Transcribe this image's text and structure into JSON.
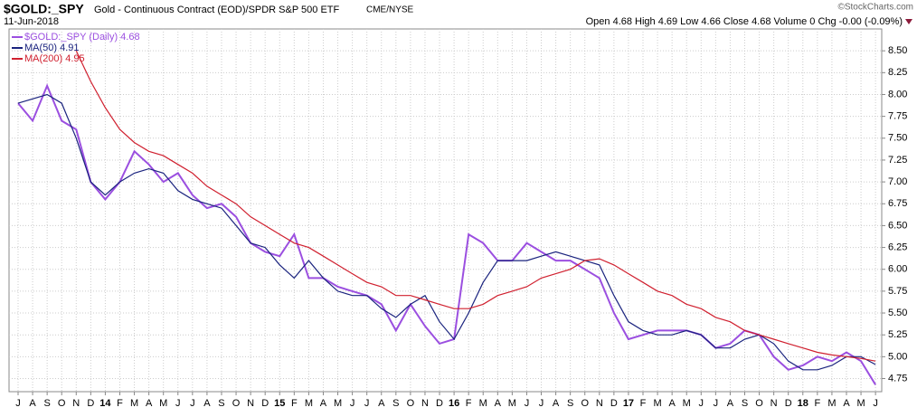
{
  "chart_data": {
    "type": "line",
    "symbol": "$GOLD:_SPY",
    "title": "Gold - Continuous Contract (EOD)/SPDR S&P 500 ETF",
    "exchange": "CME/NYSE",
    "date": "11-Jun-2018",
    "source": "©StockCharts.com",
    "quote": "Open 4.68  High 4.69  Low 4.66  Close 4.68  Volume 0  Chg -0.00 (-0.09%)",
    "categories": [
      "J",
      "A",
      "S",
      "O",
      "N",
      "D",
      "14",
      "F",
      "M",
      "A",
      "M",
      "J",
      "J",
      "A",
      "S",
      "O",
      "N",
      "D",
      "15",
      "F",
      "M",
      "A",
      "M",
      "J",
      "J",
      "A",
      "S",
      "O",
      "N",
      "D",
      "16",
      "F",
      "M",
      "A",
      "M",
      "J",
      "J",
      "A",
      "S",
      "O",
      "N",
      "D",
      "17",
      "F",
      "M",
      "A",
      "M",
      "J",
      "J",
      "A",
      "S",
      "O",
      "N",
      "D",
      "18",
      "F",
      "M",
      "A",
      "M",
      "J"
    ],
    "series": [
      {
        "name": "$GOLD:_SPY (Daily) 4.68",
        "color": "#9b4fe0",
        "values": [
          7.9,
          7.7,
          8.1,
          7.7,
          7.6,
          7.0,
          6.8,
          7.0,
          7.35,
          7.2,
          7.0,
          7.1,
          6.85,
          6.7,
          6.75,
          6.6,
          6.3,
          6.2,
          6.15,
          6.4,
          5.9,
          5.9,
          5.8,
          5.75,
          5.7,
          5.6,
          5.3,
          5.6,
          5.35,
          5.15,
          5.2,
          6.4,
          6.3,
          6.1,
          6.1,
          6.3,
          6.2,
          6.1,
          6.1,
          6.0,
          5.9,
          5.5,
          5.2,
          5.25,
          5.3,
          5.3,
          5.3,
          5.25,
          5.1,
          5.15,
          5.3,
          5.25,
          5.0,
          4.85,
          4.9,
          5.0,
          4.95,
          5.05,
          4.95,
          4.68
        ]
      },
      {
        "name": "MA(50) 4.91",
        "color": "#1a237e",
        "values": [
          7.9,
          7.95,
          8.0,
          7.9,
          7.5,
          7.0,
          6.85,
          7.0,
          7.1,
          7.15,
          7.1,
          6.9,
          6.8,
          6.75,
          6.7,
          6.5,
          6.3,
          6.25,
          6.05,
          5.9,
          6.1,
          5.9,
          5.75,
          5.7,
          5.7,
          5.55,
          5.45,
          5.6,
          5.7,
          5.4,
          5.2,
          5.5,
          5.85,
          6.1,
          6.1,
          6.1,
          6.15,
          6.2,
          6.15,
          6.1,
          6.05,
          5.7,
          5.4,
          5.3,
          5.25,
          5.25,
          5.3,
          5.25,
          5.1,
          5.1,
          5.2,
          5.25,
          5.15,
          4.95,
          4.85,
          4.85,
          4.9,
          5.0,
          5.0,
          4.91
        ]
      },
      {
        "name": "MA(200) 4.95",
        "color": "#d0202f",
        "values": [
          null,
          null,
          null,
          null,
          8.5,
          8.15,
          7.85,
          7.6,
          7.45,
          7.35,
          7.3,
          7.2,
          7.1,
          6.95,
          6.85,
          6.75,
          6.6,
          6.5,
          6.4,
          6.3,
          6.25,
          6.15,
          6.05,
          5.95,
          5.85,
          5.8,
          5.7,
          5.7,
          5.65,
          5.6,
          5.55,
          5.55,
          5.6,
          5.7,
          5.75,
          5.8,
          5.9,
          5.95,
          6.0,
          6.1,
          6.12,
          6.05,
          5.95,
          5.85,
          5.75,
          5.7,
          5.6,
          5.55,
          5.45,
          5.4,
          5.3,
          5.25,
          5.2,
          5.15,
          5.1,
          5.05,
          5.02,
          5.0,
          4.98,
          4.95
        ]
      }
    ],
    "ylim": [
      4.6,
      8.75
    ],
    "yticks": [
      {
        "value": 4.75,
        "label": "4.75"
      },
      {
        "value": 5,
        "label": "5.00"
      },
      {
        "value": 5.25,
        "label": "5.25"
      },
      {
        "value": 5.5,
        "label": "5.50"
      },
      {
        "value": 5.75,
        "label": "5.75"
      },
      {
        "value": 6,
        "label": "6.00"
      },
      {
        "value": 6.25,
        "label": "6.25"
      },
      {
        "value": 6.5,
        "label": "6.50"
      },
      {
        "value": 6.75,
        "label": "6.75"
      },
      {
        "value": 7,
        "label": "7.00"
      },
      {
        "value": 7.25,
        "label": "7.25"
      },
      {
        "value": 7.5,
        "label": "7.50"
      },
      {
        "value": 7.75,
        "label": "7.75"
      },
      {
        "value": 8,
        "label": "8.00"
      },
      {
        "value": 8.25,
        "label": "8.25"
      },
      {
        "value": 8.5,
        "label": "8.50"
      }
    ],
    "grid": true
  }
}
